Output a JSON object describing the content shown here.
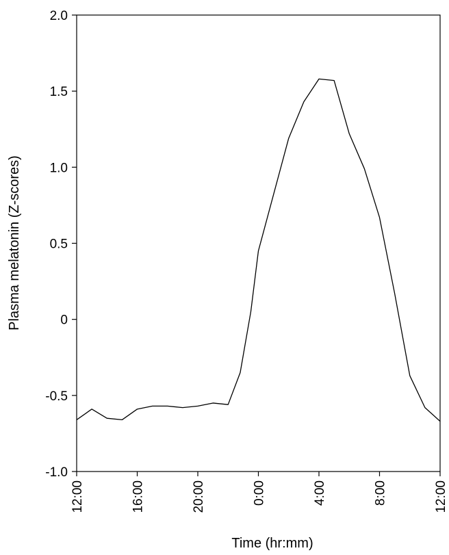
{
  "chart_data": {
    "type": "line",
    "title": "",
    "xlabel": "Time (hr:mm)",
    "ylabel": "Plasma melatonin (Z-scores)",
    "x_tick_labels": [
      "12:00",
      "16:00",
      "20:00",
      "0:00",
      "4:00",
      "8:00",
      "12:00"
    ],
    "x_tick_hours": [
      12,
      16,
      20,
      24,
      28,
      32,
      36
    ],
    "xlim": [
      12,
      36
    ],
    "ylim": [
      -1.0,
      2.0
    ],
    "y_ticks": [
      -1.0,
      -0.5,
      0,
      0.5,
      1.0,
      1.5,
      2.0
    ],
    "y_tick_labels": [
      "-1.0",
      "-0.5",
      "0",
      "0.5",
      "1.0",
      "1.5",
      "2.0"
    ],
    "grid": false,
    "legend": "none",
    "line_color": "#000000",
    "series": [
      {
        "x": [
          12,
          13,
          14,
          15,
          16,
          17,
          18,
          19,
          20,
          21,
          22,
          22.8,
          23.5,
          24,
          25,
          26,
          27,
          28,
          29,
          30,
          31,
          32,
          33,
          34,
          35,
          36
        ],
        "values": [
          -0.66,
          -0.59,
          -0.65,
          -0.66,
          -0.59,
          -0.57,
          -0.57,
          -0.58,
          -0.57,
          -0.55,
          -0.56,
          -0.35,
          0.05,
          0.45,
          0.82,
          1.19,
          1.43,
          1.58,
          1.57,
          1.22,
          0.99,
          0.67,
          0.17,
          -0.37,
          -0.58,
          -0.67
        ]
      }
    ]
  }
}
